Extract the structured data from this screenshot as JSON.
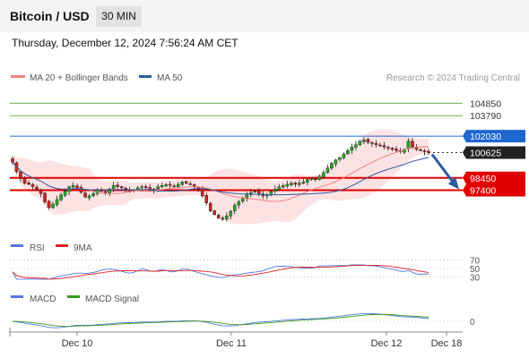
{
  "header": {
    "title": "Bitcoin / USD",
    "timeframe": "30 MIN",
    "datetime": "Thursday, December 12, 2024 7:56:24 AM CET"
  },
  "legend": {
    "ma_bb": "MA 20 + Bollinger Bands",
    "ma50": "MA 50",
    "rsi": "RSI",
    "rsi_ma": "9MA",
    "macd": "MACD",
    "macd_signal": "MACD Signal"
  },
  "copyright": "Research © 2024 Trading Central",
  "colors": {
    "up_candle": "#22aa22",
    "down_candle": "#cc2222",
    "ma20_bollinger": "#f08080",
    "ma50": "#2c5aa0",
    "resistance": "#6ab04c",
    "pivot": "#1e66d0",
    "support": "#e00000",
    "current_price": "#222222",
    "rsi": "#5577dd",
    "rsi_ma": "#dd2222",
    "macd": "#5577dd",
    "macd_signal": "#3a9a20",
    "forecast_arrow": "#2c5aa0"
  },
  "chart_data": {
    "type": "candlestick",
    "x_axis": {
      "ticks": [
        "Dec 10",
        "Dec 11",
        "Dec 12",
        "Dec 18"
      ]
    },
    "y_axis": {
      "range": [
        93600,
        106800
      ]
    },
    "levels": [
      {
        "label": "104850",
        "value": 104850,
        "kind": "resistance"
      },
      {
        "label": "103790",
        "value": 103790,
        "kind": "resistance"
      },
      {
        "label": "102030",
        "value": 102030,
        "kind": "pivot"
      },
      {
        "label": "100625",
        "value": 100625,
        "kind": "current"
      },
      {
        "label": "98450",
        "value": 98450,
        "kind": "support"
      },
      {
        "label": "97400",
        "value": 97400,
        "kind": "support"
      }
    ],
    "close": [
      99800,
      99000,
      98400,
      98000,
      97900,
      97700,
      97500,
      97100,
      96400,
      95900,
      96200,
      96600,
      97000,
      97300,
      97700,
      97800,
      97600,
      97200,
      96800,
      96900,
      97100,
      97400,
      97300,
      97200,
      97500,
      97800,
      97700,
      97600,
      97400,
      97300,
      97400,
      97600,
      97700,
      97600,
      97400,
      97500,
      97700,
      97800,
      97900,
      97800,
      97700,
      97900,
      98100,
      98000,
      97900,
      97700,
      97500,
      96900,
      96300,
      95600,
      95300,
      95000,
      94900,
      95200,
      95600,
      96100,
      96400,
      96700,
      97000,
      97200,
      97300,
      97100,
      96900,
      97000,
      97300,
      97500,
      97700,
      97800,
      97900,
      98000,
      97900,
      98000,
      98100,
      98300,
      98400,
      98300,
      98600,
      98900,
      99300,
      99700,
      100000,
      100200,
      100500,
      100800,
      101100,
      101300,
      101600,
      101700,
      101500,
      101400,
      101300,
      101200,
      101100,
      101000,
      100900,
      100800,
      100700,
      100900,
      101600,
      101100,
      100900,
      100800,
      100700,
      100625
    ],
    "rsi": {
      "levels": [
        70,
        50,
        30
      ]
    },
    "macd": {
      "levels": [
        0
      ]
    },
    "forecast": {
      "from": 100625,
      "to": 97400
    }
  }
}
